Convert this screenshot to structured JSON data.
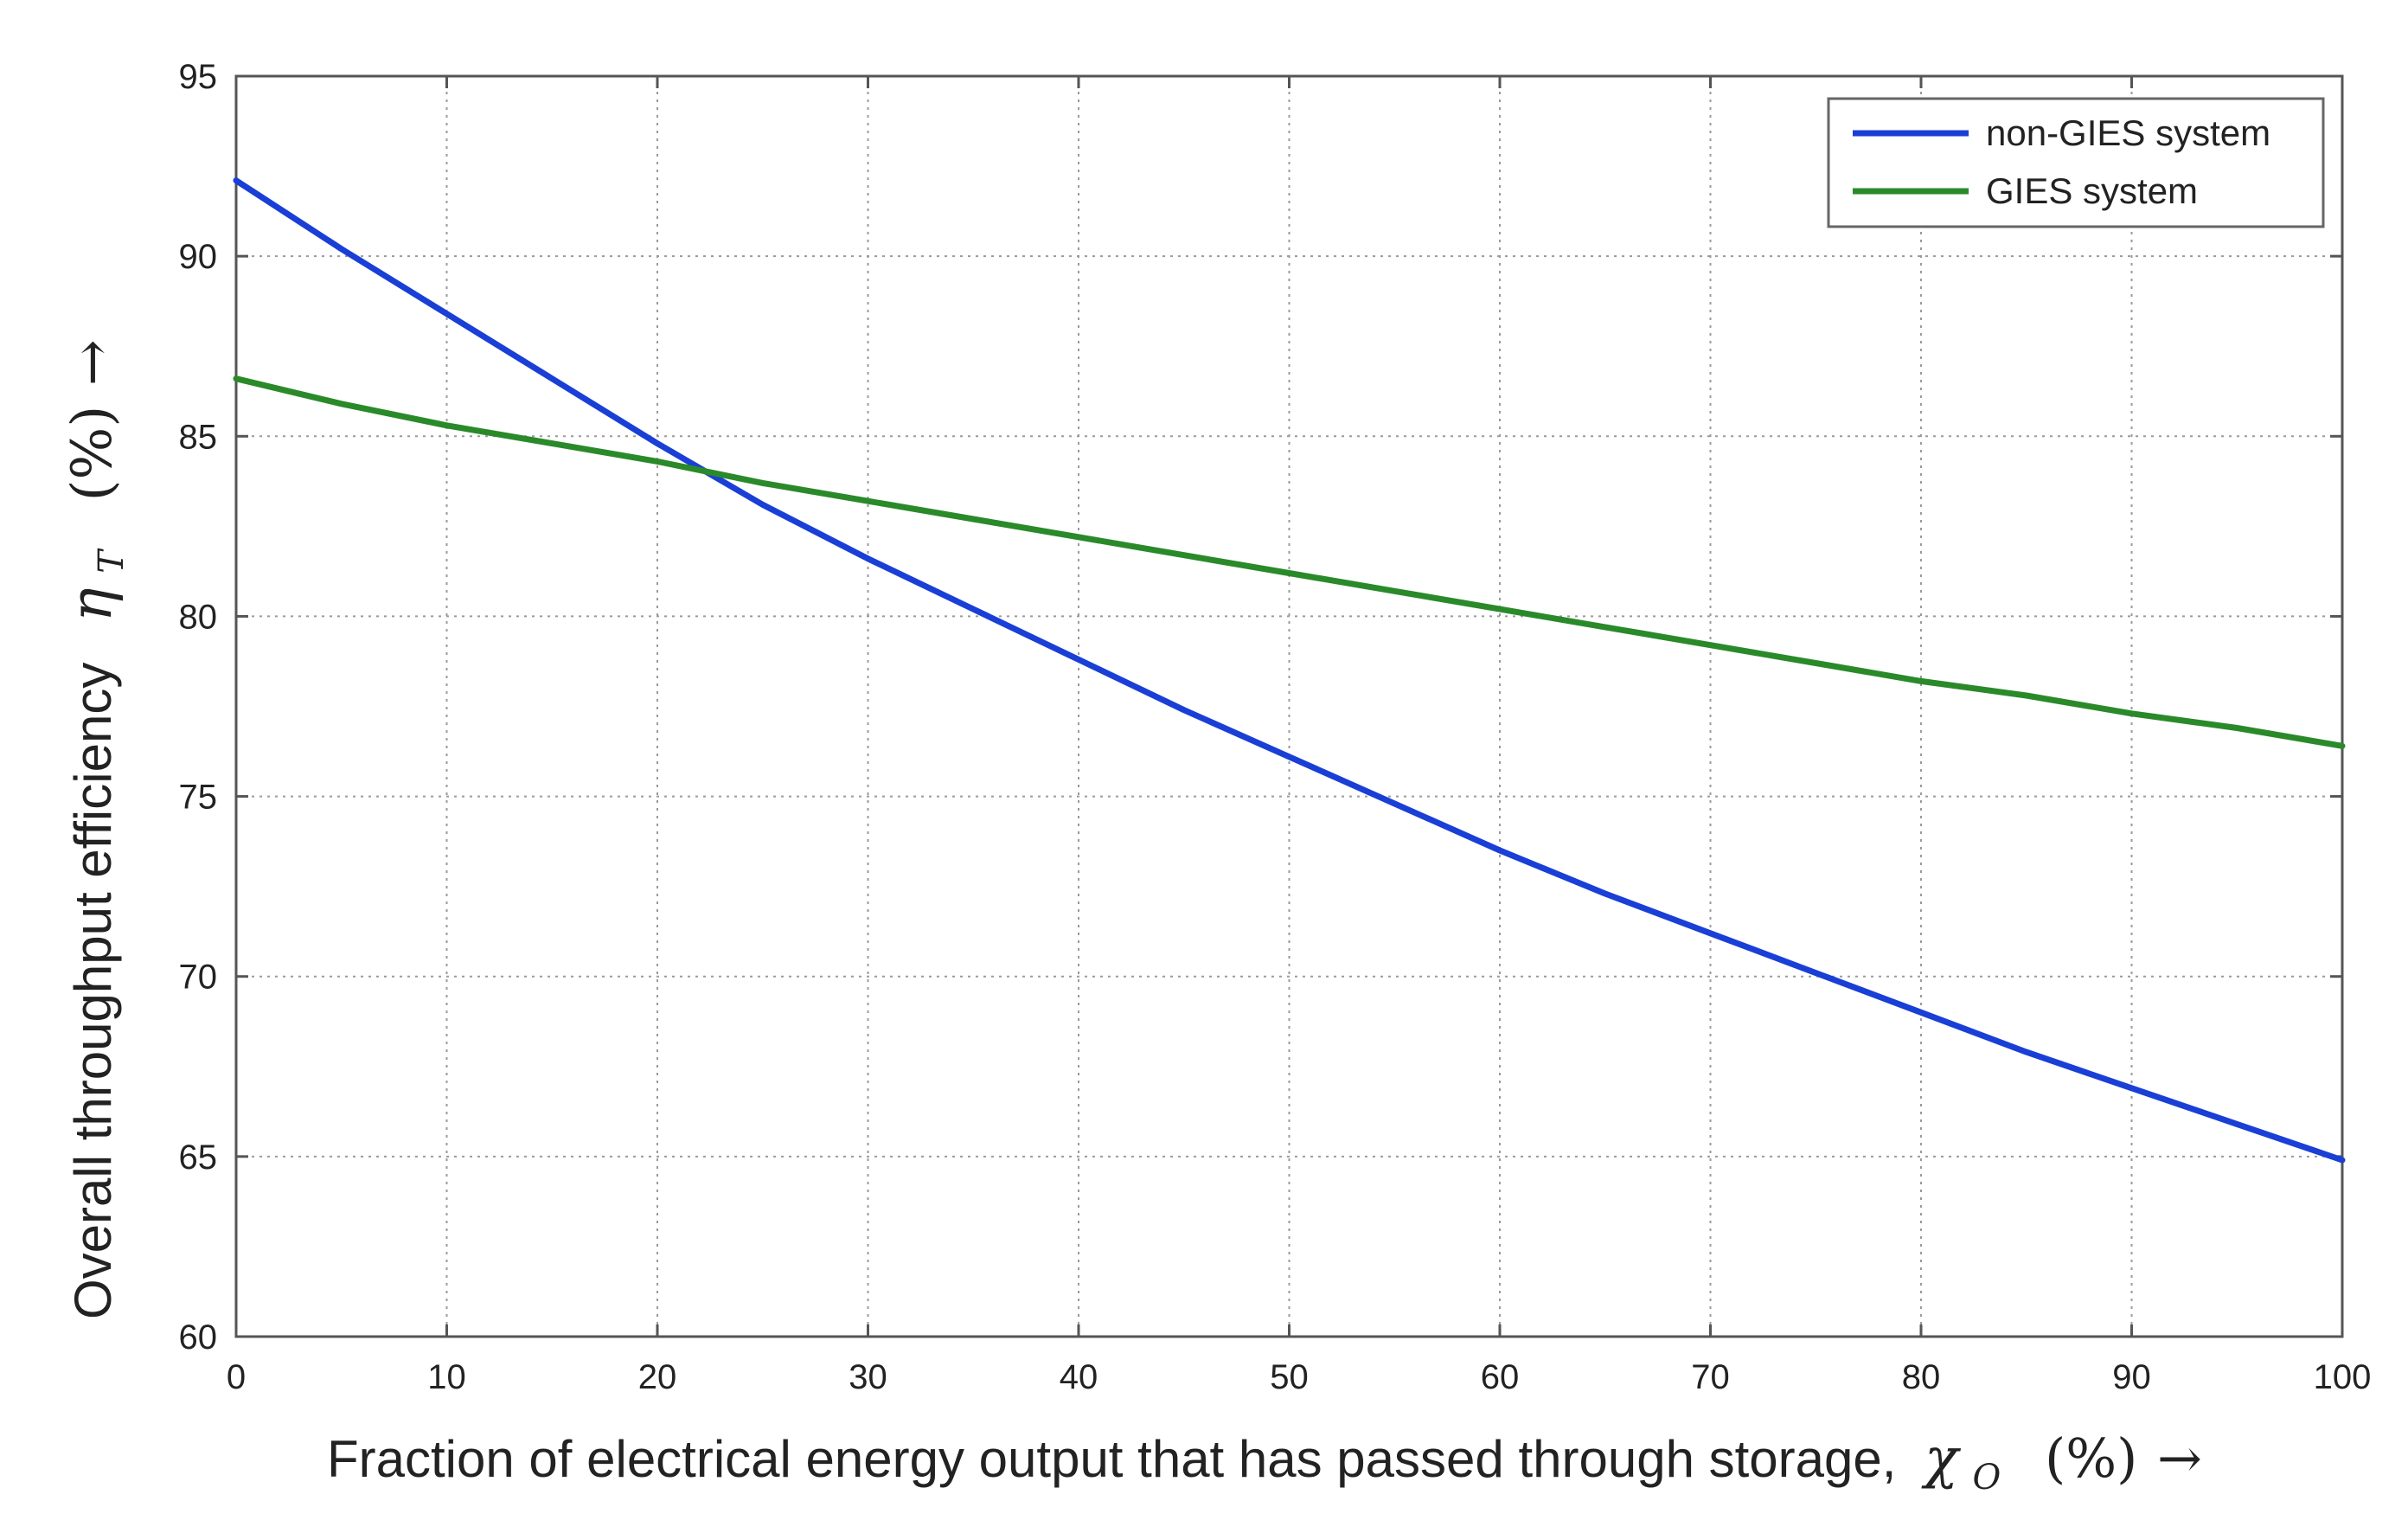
{
  "chart_data": {
    "type": "line",
    "x": [
      0,
      5,
      10,
      15,
      20,
      25,
      30,
      35,
      40,
      45,
      50,
      55,
      60,
      65,
      70,
      75,
      80,
      85,
      90,
      95,
      100
    ],
    "series": [
      {
        "name": "non-GIES system",
        "color": "#1a3fd6",
        "values": [
          92.1,
          90.2,
          88.4,
          86.6,
          84.8,
          83.1,
          81.6,
          80.2,
          78.8,
          77.4,
          76.1,
          74.8,
          73.5,
          72.3,
          71.2,
          70.1,
          69.0,
          67.9,
          66.9,
          65.9,
          64.9
        ]
      },
      {
        "name": "GIES system",
        "color": "#2a8a2a",
        "values": [
          86.6,
          85.9,
          85.3,
          84.8,
          84.3,
          83.7,
          83.2,
          82.7,
          82.2,
          81.7,
          81.2,
          80.7,
          80.2,
          79.7,
          79.2,
          78.7,
          78.2,
          77.8,
          77.3,
          76.9,
          76.4
        ]
      }
    ],
    "xlim": [
      0,
      100
    ],
    "ylim": [
      60,
      95
    ],
    "xticks": [
      "0",
      "10",
      "20",
      "30",
      "40",
      "50",
      "60",
      "70",
      "80",
      "90",
      "100"
    ],
    "yticks": [
      "60",
      "65",
      "70",
      "75",
      "80",
      "85",
      "90",
      "95"
    ],
    "xlabel": {
      "text": "Fraction of electrical energy output that has passed through storage,",
      "symbol": "χ",
      "subscript": "O",
      "unit": "(%)",
      "arrow": "→"
    },
    "ylabel": {
      "text": "Overall throughput efficiency",
      "symbol": "η",
      "subscript": "T",
      "unit": "(%)",
      "arrow": "→"
    },
    "grid": true,
    "legend_position": "top-right",
    "axis_color": "#555555",
    "grid_color": "#9a9a9a"
  }
}
